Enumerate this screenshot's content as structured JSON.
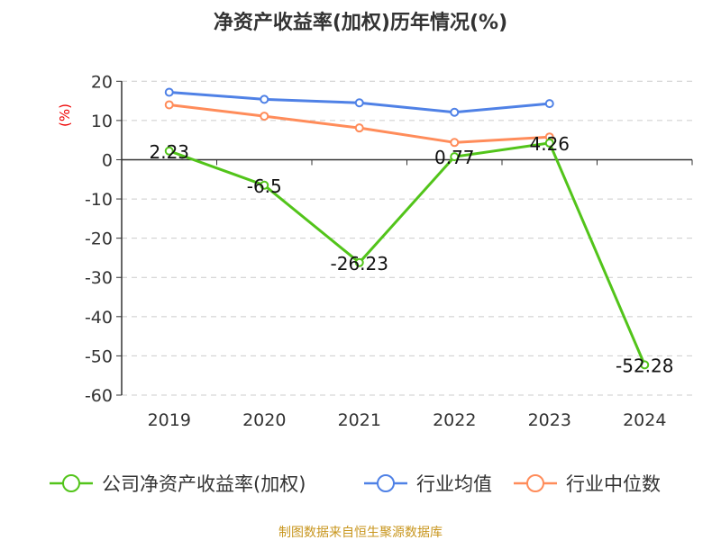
{
  "chart_data": {
    "type": "line",
    "title": "净资产收益率(加权)历年情况(%)",
    "ylabel": "(%)",
    "xlabel": "",
    "categories": [
      "2019",
      "2020",
      "2021",
      "2022",
      "2023",
      "2024"
    ],
    "ylim": [
      -60,
      20
    ],
    "yticks": [
      "20",
      "10",
      "0",
      "-10",
      "-20",
      "-30",
      "-40",
      "-50",
      "-60"
    ],
    "grid": true,
    "legend_position": "bottom",
    "series": [
      {
        "name": "公司净资产收益率(加权)",
        "color": "#52c41a",
        "values": [
          2.23,
          -6.5,
          -26.23,
          0.77,
          4.26,
          -52.28
        ],
        "labels": [
          "2.23",
          "-6.5",
          "-26.23",
          "0.77",
          "4.26",
          "-52.28"
        ]
      },
      {
        "name": "行业均值",
        "color": "#4f81e6",
        "values": [
          17.2,
          15.4,
          14.5,
          12.1,
          14.3,
          null
        ]
      },
      {
        "name": "行业中位数",
        "color": "#ff8c5a",
        "values": [
          14.0,
          11.1,
          8.1,
          4.4,
          5.8,
          null
        ]
      }
    ]
  },
  "footer": "制图数据来自恒生聚源数据库"
}
